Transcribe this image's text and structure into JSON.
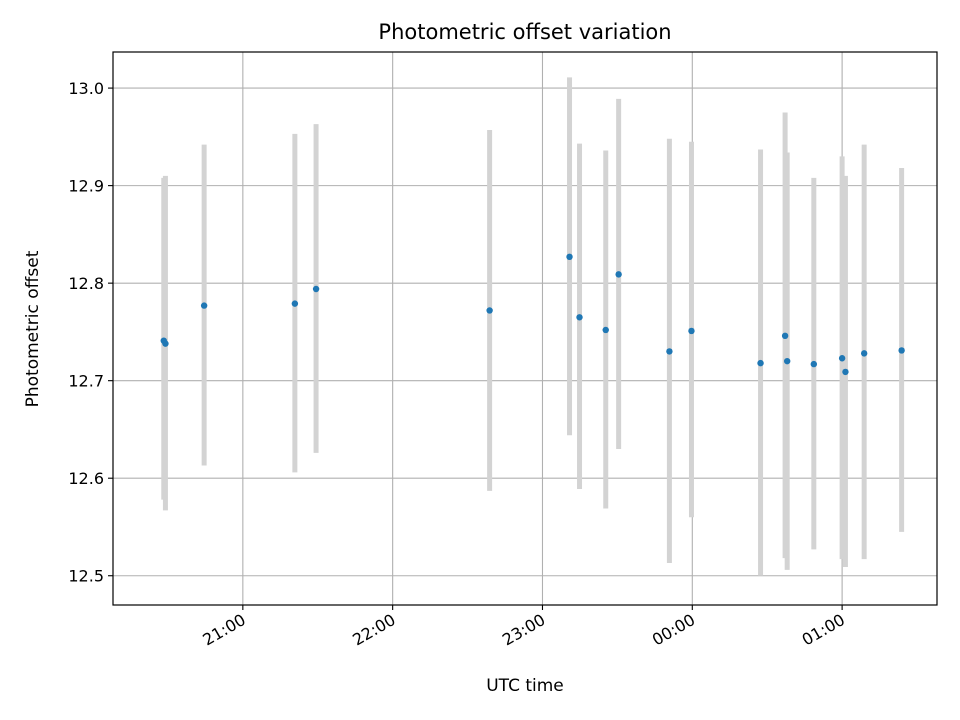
{
  "chart_data": {
    "type": "scatter",
    "title": "Photometric offset variation",
    "xlabel": "UTC time",
    "ylabel": "Photometric offset",
    "x_axis_type": "time",
    "xlim": [
      "20:08",
      "01:38"
    ],
    "ylim": [
      12.47,
      13.037
    ],
    "grid": true,
    "x_ticks": [
      "21:00",
      "22:00",
      "23:00",
      "00:00",
      "01:00"
    ],
    "y_ticks": [
      "12.5",
      "12.6",
      "12.7",
      "12.8",
      "12.9",
      "13.0"
    ],
    "marker_color": "#1f77b4",
    "errorbar_color": "#d3d3d3",
    "series": [
      {
        "points": [
          {
            "x": "20:28:20",
            "y": 12.741,
            "ymin": 12.578,
            "ymax": 12.908
          },
          {
            "x": "20:29:00",
            "y": 12.738,
            "ymin": 12.567,
            "ymax": 12.91
          },
          {
            "x": "20:44:30",
            "y": 12.777,
            "ymin": 12.613,
            "ymax": 12.942
          },
          {
            "x": "21:20:50",
            "y": 12.779,
            "ymin": 12.606,
            "ymax": 12.953
          },
          {
            "x": "21:29:20",
            "y": 12.794,
            "ymin": 12.626,
            "ymax": 12.963
          },
          {
            "x": "22:38:50",
            "y": 12.772,
            "ymin": 12.587,
            "ymax": 12.957
          },
          {
            "x": "23:10:50",
            "y": 12.827,
            "ymin": 12.644,
            "ymax": 13.011
          },
          {
            "x": "23:14:50",
            "y": 12.765,
            "ymin": 12.589,
            "ymax": 12.943
          },
          {
            "x": "23:25:20",
            "y": 12.752,
            "ymin": 12.569,
            "ymax": 12.936
          },
          {
            "x": "23:30:30",
            "y": 12.809,
            "ymin": 12.63,
            "ymax": 12.989
          },
          {
            "x": "23:50:50",
            "y": 12.73,
            "ymin": 12.513,
            "ymax": 12.948
          },
          {
            "x": "23:59:40",
            "y": 12.751,
            "ymin": 12.56,
            "ymax": 12.945
          },
          {
            "x": "00:27:20",
            "y": 12.718,
            "ymin": 12.5,
            "ymax": 12.937
          },
          {
            "x": "00:37:10",
            "y": 12.746,
            "ymin": 12.518,
            "ymax": 12.975
          },
          {
            "x": "00:38:00",
            "y": 12.72,
            "ymin": 12.506,
            "ymax": 12.934
          },
          {
            "x": "00:48:40",
            "y": 12.717,
            "ymin": 12.527,
            "ymax": 12.908
          },
          {
            "x": "01:00:00",
            "y": 12.723,
            "ymin": 12.517,
            "ymax": 12.93
          },
          {
            "x": "01:01:20",
            "y": 12.709,
            "ymin": 12.509,
            "ymax": 12.91
          },
          {
            "x": "01:08:50",
            "y": 12.728,
            "ymin": 12.517,
            "ymax": 12.942
          },
          {
            "x": "01:23:50",
            "y": 12.731,
            "ymin": 12.545,
            "ymax": 12.918
          }
        ]
      }
    ]
  }
}
